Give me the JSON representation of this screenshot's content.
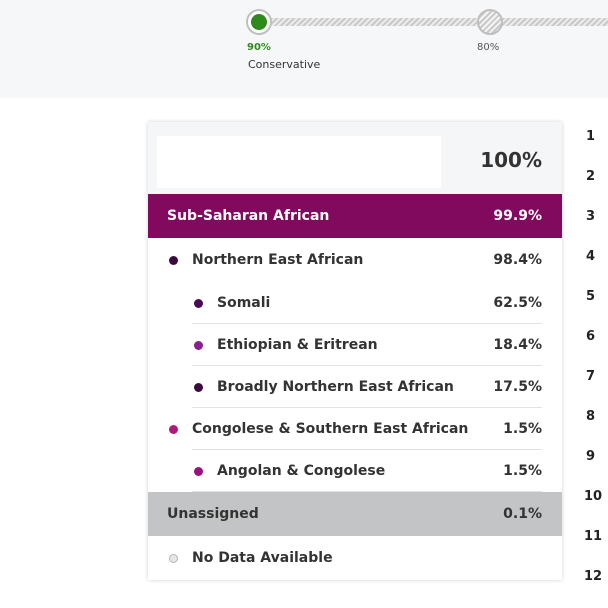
{
  "slider": {
    "active": {
      "percent": "90%",
      "caption": "Conservative",
      "color": "#2f8a1d"
    },
    "inactive": {
      "percent": "80%"
    }
  },
  "card": {
    "total": "100%",
    "region": {
      "label": "Sub-Saharan African",
      "value": "99.9%",
      "color": "#810a5f"
    },
    "items": [
      {
        "label": "Northern East African",
        "value": "98.4%",
        "dot_color": "#3b0a3e"
      },
      {
        "label": "Somali",
        "value": "62.5%",
        "dot_color": "#4a0a55"
      },
      {
        "label": "Ethiopian & Eritrean",
        "value": "18.4%",
        "dot_color": "#8a1f8f"
      },
      {
        "label": "Broadly Northern East African",
        "value": "17.5%",
        "dot_color": "#3b0a3e"
      },
      {
        "label": "Congolese & Southern East African",
        "value": "1.5%",
        "dot_color": "#b0197e"
      },
      {
        "label": "Angolan & Congolese",
        "value": "1.5%",
        "dot_color": "#9c1180"
      }
    ],
    "unassigned": {
      "label": "Unassigned",
      "value": "0.1%"
    },
    "no_data": {
      "label": "No Data Available"
    }
  },
  "line_numbers": [
    "1",
    "2",
    "3",
    "4",
    "5",
    "6",
    "7",
    "8",
    "9",
    "10",
    "11",
    "12"
  ]
}
